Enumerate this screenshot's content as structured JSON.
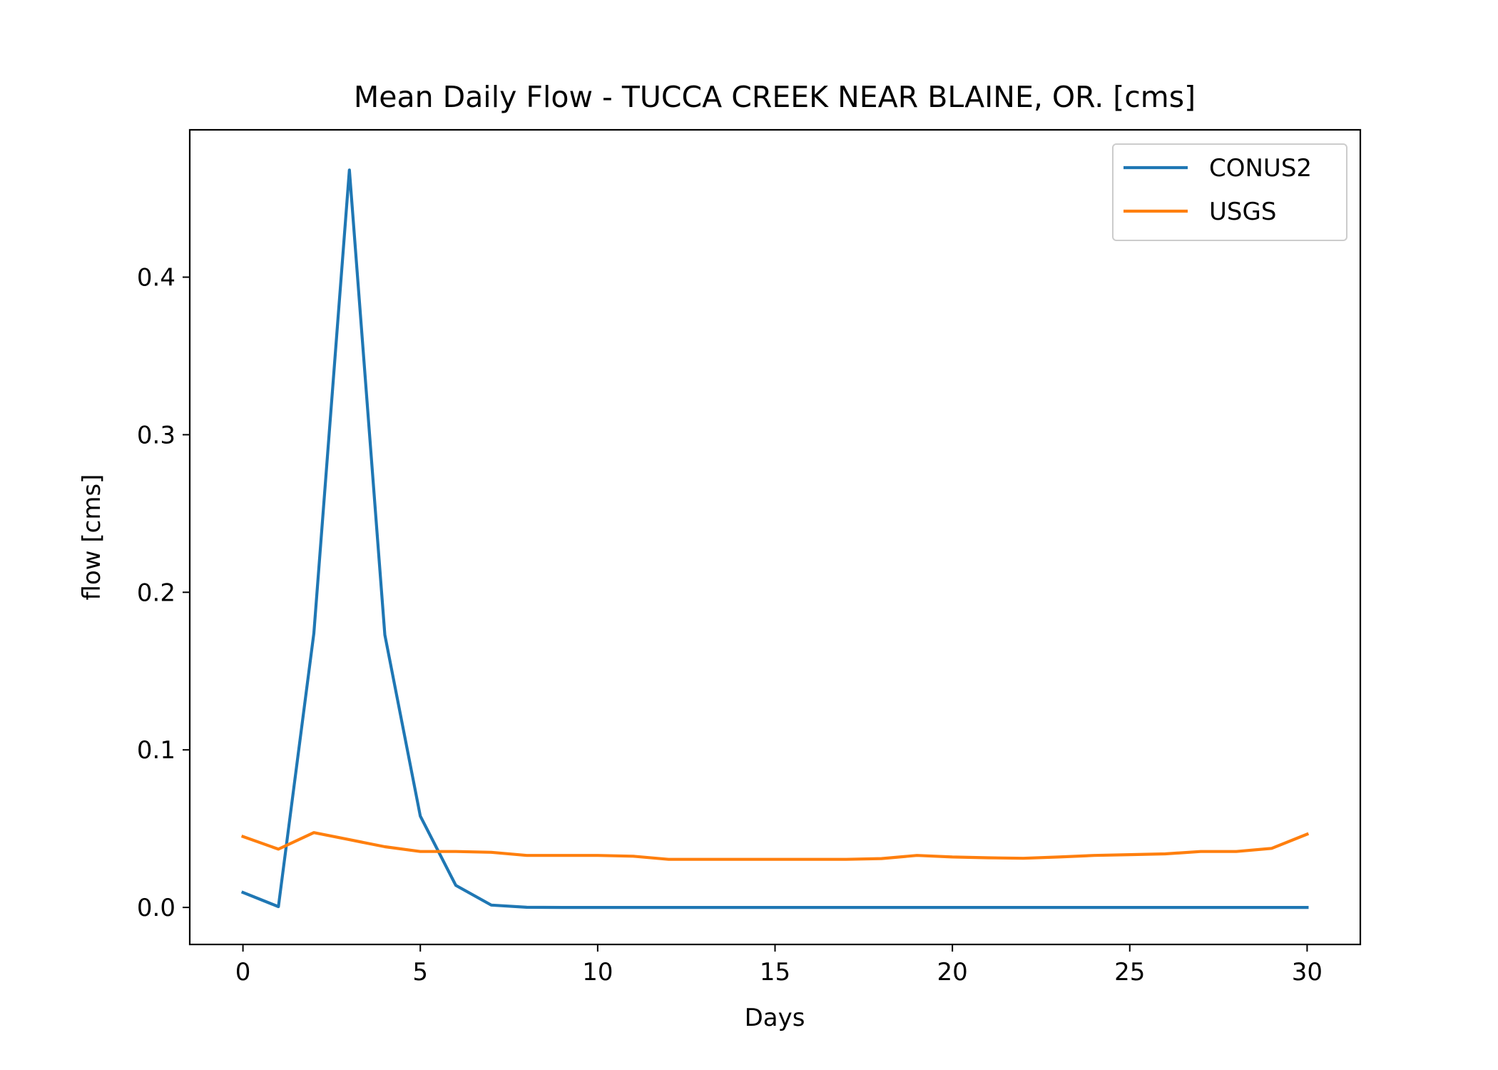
{
  "chart_data": {
    "type": "line",
    "title": "Mean Daily Flow - TUCCA CREEK NEAR BLAINE, OR. [cms]",
    "xlabel": "Days",
    "ylabel": "flow [cms]",
    "xlim": [
      -1.5,
      31.5
    ],
    "ylim": [
      -0.0235,
      0.4935
    ],
    "x_ticks": [
      0,
      5,
      10,
      15,
      20,
      25,
      30
    ],
    "x_tick_labels": [
      "0",
      "5",
      "10",
      "15",
      "20",
      "25",
      "30"
    ],
    "y_ticks": [
      0.0,
      0.1,
      0.2,
      0.3,
      0.4
    ],
    "y_tick_labels": [
      "0.0",
      "0.1",
      "0.2",
      "0.3",
      "0.4"
    ],
    "grid": false,
    "legend_position": "top-right",
    "x": [
      0,
      1,
      2,
      3,
      4,
      5,
      6,
      7,
      8,
      9,
      10,
      11,
      12,
      13,
      14,
      15,
      16,
      17,
      18,
      19,
      20,
      21,
      22,
      23,
      24,
      25,
      26,
      27,
      28,
      29,
      30
    ],
    "series": [
      {
        "name": "CONUS2",
        "color": "#1f77b4",
        "values": [
          0.0095,
          0.0005,
          0.174,
          0.468,
          0.173,
          0.058,
          0.014,
          0.0015,
          0.0001,
          0,
          0,
          0,
          0,
          0,
          0,
          0,
          0,
          0,
          0,
          0,
          0,
          0,
          0,
          0,
          0,
          0,
          0,
          0,
          0,
          0,
          0
        ]
      },
      {
        "name": "USGS",
        "color": "#ff7f0e",
        "values": [
          0.045,
          0.037,
          0.0475,
          0.043,
          0.0385,
          0.0355,
          0.0355,
          0.035,
          0.033,
          0.033,
          0.033,
          0.0325,
          0.0305,
          0.0305,
          0.0305,
          0.0305,
          0.0305,
          0.0305,
          0.031,
          0.033,
          0.032,
          0.0315,
          0.0312,
          0.032,
          0.033,
          0.0335,
          0.034,
          0.0355,
          0.0355,
          0.0375,
          0.0465
        ]
      }
    ]
  }
}
